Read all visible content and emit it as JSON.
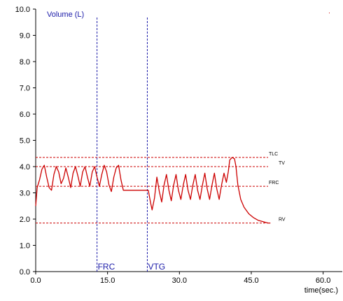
{
  "chart_data": {
    "type": "line",
    "ylabel": "Volume (L)",
    "xlabel": "time(sec.)",
    "xlim": [
      0,
      64
    ],
    "ylim": [
      0,
      10
    ],
    "x_ticks": [
      0,
      15,
      30,
      45,
      60
    ],
    "x_tick_labels": [
      "0.0",
      "15.0",
      "30.0",
      "45.0",
      "60.0"
    ],
    "y_ticks": [
      0,
      1,
      2,
      3,
      4,
      5,
      6,
      7,
      8,
      9,
      10
    ],
    "y_tick_labels": [
      "0.0",
      "1.0",
      "2.0",
      "3.0",
      "4.0",
      "5.0",
      "6.0",
      "7.0",
      "8.0",
      "9.0",
      "10.0"
    ],
    "grid": false,
    "line_color": "#cc0000",
    "reference_color": "#cc0000",
    "marker_color": "#1a1aa8",
    "reference_lines": [
      {
        "label": "TLC",
        "y": 4.35
      },
      {
        "label": "TV",
        "y": 4.0
      },
      {
        "label": "FRC",
        "y": 3.25
      },
      {
        "label": "RV",
        "y": 1.85
      }
    ],
    "vertical_markers": [
      {
        "label": "FRC",
        "x": 12.8
      },
      {
        "label": "VTG",
        "x": 23.3
      }
    ],
    "series": [
      {
        "points": [
          [
            0.0,
            2.5
          ],
          [
            0.3,
            3.2
          ],
          [
            0.8,
            3.5
          ],
          [
            1.3,
            3.9
          ],
          [
            1.8,
            4.05
          ],
          [
            2.3,
            3.6
          ],
          [
            2.8,
            3.2
          ],
          [
            3.3,
            3.1
          ],
          [
            3.8,
            3.7
          ],
          [
            4.3,
            4.0
          ],
          [
            4.8,
            3.8
          ],
          [
            5.3,
            3.35
          ],
          [
            5.8,
            3.55
          ],
          [
            6.3,
            3.95
          ],
          [
            6.8,
            3.6
          ],
          [
            7.3,
            3.2
          ],
          [
            7.8,
            3.75
          ],
          [
            8.3,
            4.0
          ],
          [
            8.8,
            3.65
          ],
          [
            9.3,
            3.25
          ],
          [
            9.8,
            3.8
          ],
          [
            10.3,
            4.0
          ],
          [
            10.8,
            3.6
          ],
          [
            11.3,
            3.25
          ],
          [
            11.8,
            3.8
          ],
          [
            12.3,
            4.0
          ],
          [
            12.8,
            3.6
          ],
          [
            13.3,
            3.25
          ],
          [
            13.8,
            3.7
          ],
          [
            14.3,
            4.05
          ],
          [
            14.8,
            3.8
          ],
          [
            15.3,
            3.3
          ],
          [
            15.8,
            3.05
          ],
          [
            16.3,
            3.6
          ],
          [
            16.8,
            3.95
          ],
          [
            17.3,
            4.05
          ],
          [
            17.8,
            3.5
          ],
          [
            18.3,
            3.1
          ],
          [
            18.5,
            3.1
          ],
          [
            23.5,
            3.1
          ],
          [
            24.0,
            2.6
          ],
          [
            24.3,
            2.35
          ],
          [
            24.8,
            2.8
          ],
          [
            25.3,
            3.6
          ],
          [
            25.8,
            3.05
          ],
          [
            26.3,
            2.65
          ],
          [
            26.8,
            3.3
          ],
          [
            27.3,
            3.7
          ],
          [
            27.8,
            3.1
          ],
          [
            28.3,
            2.7
          ],
          [
            28.8,
            3.3
          ],
          [
            29.3,
            3.7
          ],
          [
            29.8,
            3.1
          ],
          [
            30.3,
            2.75
          ],
          [
            30.8,
            3.3
          ],
          [
            31.3,
            3.7
          ],
          [
            31.8,
            3.1
          ],
          [
            32.3,
            2.75
          ],
          [
            32.8,
            3.3
          ],
          [
            33.3,
            3.7
          ],
          [
            33.8,
            3.1
          ],
          [
            34.3,
            2.75
          ],
          [
            34.8,
            3.3
          ],
          [
            35.3,
            3.75
          ],
          [
            35.8,
            3.15
          ],
          [
            36.3,
            2.75
          ],
          [
            36.8,
            3.3
          ],
          [
            37.3,
            3.75
          ],
          [
            37.8,
            3.15
          ],
          [
            38.3,
            2.75
          ],
          [
            38.8,
            3.3
          ],
          [
            39.3,
            3.75
          ],
          [
            39.8,
            3.4
          ],
          [
            40.2,
            3.8
          ],
          [
            40.5,
            4.25
          ],
          [
            41.0,
            4.35
          ],
          [
            41.5,
            4.3
          ],
          [
            41.8,
            4.0
          ],
          [
            42.2,
            3.3
          ],
          [
            42.8,
            2.75
          ],
          [
            43.5,
            2.45
          ],
          [
            44.5,
            2.2
          ],
          [
            45.5,
            2.05
          ],
          [
            46.5,
            1.95
          ],
          [
            47.5,
            1.9
          ],
          [
            48.5,
            1.85
          ],
          [
            49.0,
            1.85
          ]
        ]
      }
    ]
  }
}
